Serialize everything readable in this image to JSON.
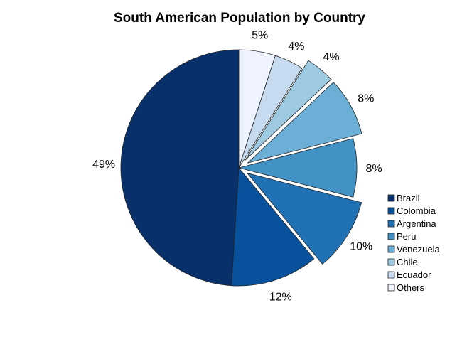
{
  "chart_data": {
    "type": "pie",
    "title": "South American Population by Country",
    "categories": [
      "Brazil",
      "Colombia",
      "Argentina",
      "Peru",
      "Venezuela",
      "Chile",
      "Ecuador",
      "Others"
    ],
    "values": [
      49,
      12,
      10,
      8,
      8,
      4,
      4,
      5
    ],
    "labels": [
      "49%",
      "12%",
      "10%",
      "8%",
      "8%",
      "4%",
      "4%",
      "5%"
    ],
    "exploded": [
      "Argentina",
      "Venezuela",
      "Chile"
    ],
    "colors": [
      "#08306b",
      "#08519c",
      "#2171b5",
      "#4292c6",
      "#6baed6",
      "#9ecae1",
      "#c6dbef",
      "#eff3ff"
    ],
    "start": "12 o'clock",
    "direction": "counterclockwise",
    "legend_position": "right"
  }
}
